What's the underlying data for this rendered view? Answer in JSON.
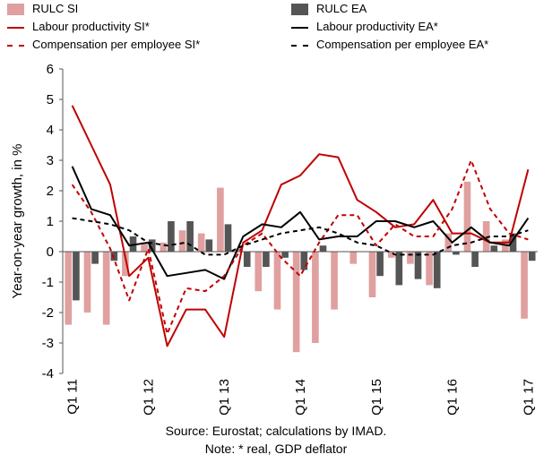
{
  "chart_data": {
    "type": "bar",
    "ylabel": "Year-on-year growth, in %",
    "ylim": [
      -4,
      6
    ],
    "yticks": [
      -4,
      -3,
      -2,
      -1,
      0,
      1,
      2,
      3,
      4,
      5,
      6
    ],
    "x_tick_labels": [
      "Q1 11",
      "Q1 12",
      "Q1 13",
      "Q1 14",
      "Q1 15",
      "Q1 16",
      "Q1 17"
    ],
    "periods": 25,
    "grid": false,
    "legend_position": "top",
    "bar_series": [
      {
        "name": "RULC SI",
        "color": "#e0a0a0",
        "values": [
          -2.4,
          -2.0,
          -2.4,
          -0.8,
          0.3,
          0.3,
          0.7,
          0.6,
          2.1,
          0.1,
          -1.3,
          -1.9,
          -3.3,
          -3.0,
          -1.9,
          -0.4,
          -1.5,
          -0.2,
          -0.4,
          -1.1,
          0.6,
          2.3,
          1.0,
          0.4,
          -2.2
        ]
      },
      {
        "name": "RULC EA",
        "color": "#555555",
        "values": [
          -1.6,
          -0.4,
          -0.3,
          0.5,
          0.4,
          1.0,
          1.0,
          0.4,
          0.9,
          -0.5,
          -0.5,
          -0.2,
          -0.6,
          0.2,
          0.0,
          0.0,
          -0.8,
          -1.1,
          -0.9,
          -1.2,
          -0.1,
          -0.5,
          0.2,
          0.6,
          -0.3
        ]
      }
    ],
    "line_series": [
      {
        "name": "Labour productivity SI*",
        "color": "#c00000",
        "dash": "solid",
        "values": [
          4.8,
          3.5,
          2.2,
          -0.8,
          -0.2,
          -3.1,
          -1.9,
          -1.9,
          -2.8,
          0.3,
          0.7,
          2.2,
          2.5,
          3.2,
          3.1,
          1.7,
          1.3,
          0.8,
          0.9,
          1.7,
          0.6,
          0.6,
          0.3,
          0.3,
          2.7
        ]
      },
      {
        "name": "Labour productivity EA*",
        "color": "#000000",
        "dash": "solid",
        "values": [
          2.8,
          1.4,
          1.2,
          0.2,
          0.3,
          -0.8,
          -0.7,
          -0.6,
          -0.9,
          0.5,
          0.9,
          0.8,
          1.3,
          0.4,
          0.5,
          0.5,
          1.0,
          1.0,
          0.8,
          1.0,
          0.3,
          0.8,
          0.3,
          0.2,
          1.1
        ]
      },
      {
        "name": "Compensation per employee SI*",
        "color": "#c00000",
        "dash": "dashed",
        "values": [
          2.2,
          1.3,
          0.1,
          -1.6,
          0.1,
          -2.7,
          -1.2,
          -1.3,
          -0.8,
          0.2,
          0.6,
          -0.2,
          -0.8,
          0.3,
          1.2,
          1.2,
          0.2,
          0.9,
          0.5,
          0.5,
          1.4,
          3.0,
          1.4,
          0.6,
          0.4
        ]
      },
      {
        "name": "Compensation per employee EA*",
        "color": "#000000",
        "dash": "dashed",
        "values": [
          1.1,
          1.0,
          0.9,
          0.7,
          0.3,
          0.2,
          0.3,
          -0.1,
          -0.1,
          0.2,
          0.4,
          0.6,
          0.7,
          0.8,
          0.6,
          0.3,
          0.2,
          -0.1,
          -0.1,
          -0.1,
          0.2,
          0.3,
          0.5,
          0.5,
          0.7
        ]
      }
    ]
  },
  "legend": [
    {
      "label": "RULC SI",
      "kind": "bar",
      "color": "#e0a0a0"
    },
    {
      "label": "RULC EA",
      "kind": "bar",
      "color": "#555555"
    },
    {
      "label": "Labour productivity SI*",
      "kind": "line",
      "color": "#c00000"
    },
    {
      "label": "Labour productivity EA*",
      "kind": "line",
      "color": "#000000"
    },
    {
      "label": "Compensation per employee SI*",
      "kind": "dash",
      "color": "#c00000"
    },
    {
      "label": "Compensation per employee EA*",
      "kind": "dash",
      "color": "#000000"
    }
  ],
  "notes": {
    "source": "Source: Eurostat; calculations by IMAD.",
    "note": "Note: * real, GDP deflator"
  }
}
